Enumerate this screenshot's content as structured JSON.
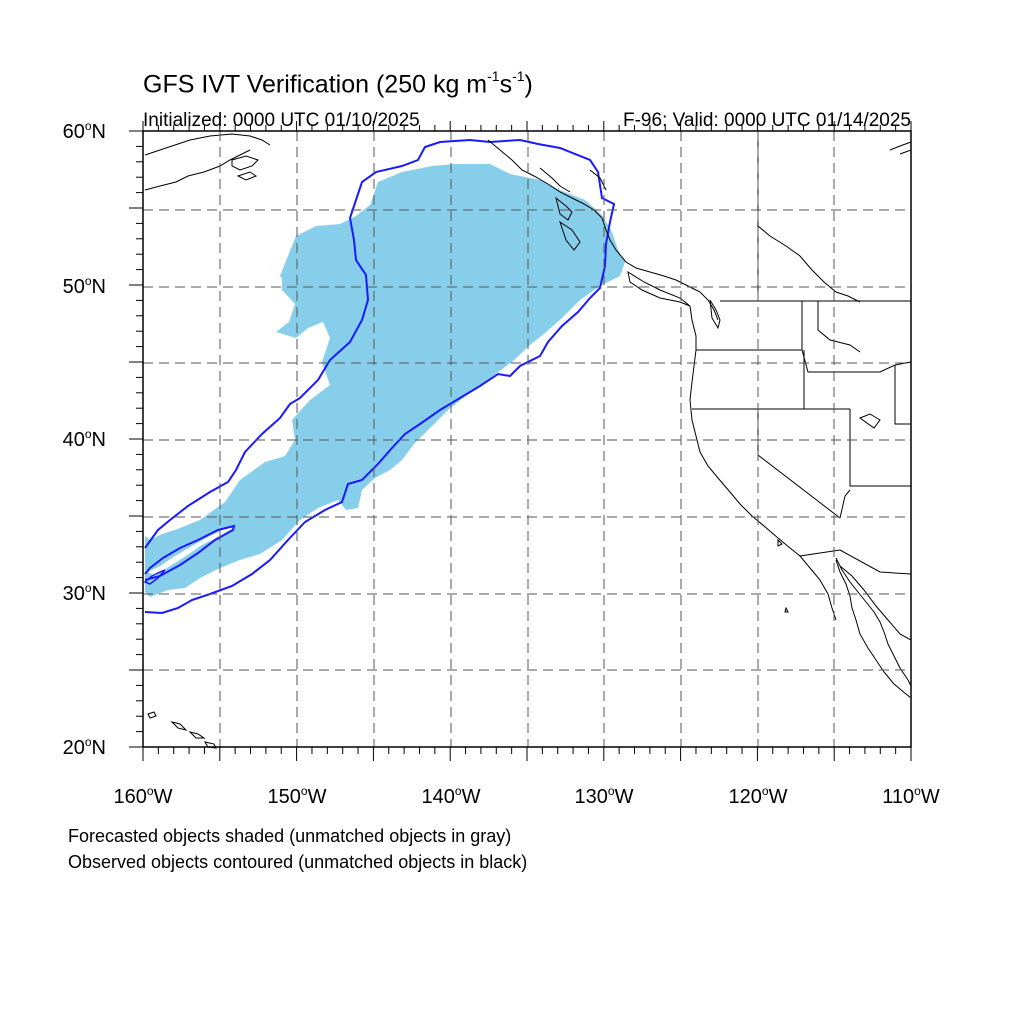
{
  "title": {
    "main_prefix": "GFS IVT Verification (250 kg m",
    "sup1": "-1",
    "mid": "s",
    "sup2": "-1",
    "suffix": ")"
  },
  "initialized": "Initialized: 0000 UTC 01/10/2025",
  "valid": "F-96: Valid: 0000 UTC 01/14/2025",
  "lat_labels": [
    {
      "value": "60",
      "suffix": "N"
    },
    {
      "value": "50",
      "suffix": "N"
    },
    {
      "value": "40",
      "suffix": "N"
    },
    {
      "value": "30",
      "suffix": "N"
    },
    {
      "value": "20",
      "suffix": "N"
    }
  ],
  "lon_labels": [
    {
      "value": "160",
      "suffix": "W"
    },
    {
      "value": "150",
      "suffix": "W"
    },
    {
      "value": "140",
      "suffix": "W"
    },
    {
      "value": "130",
      "suffix": "W"
    },
    {
      "value": "120",
      "suffix": "W"
    },
    {
      "value": "110",
      "suffix": "W"
    }
  ],
  "captions": [
    "Forecasted objects shaded (unmatched objects in gray)",
    "Observed objects contoured (unmatched objects in black)"
  ],
  "colors": {
    "forecast_fill": "#87ceeb",
    "observed_contour": "#1a1aff",
    "coastline": "#000000",
    "grid": "#555555"
  }
}
